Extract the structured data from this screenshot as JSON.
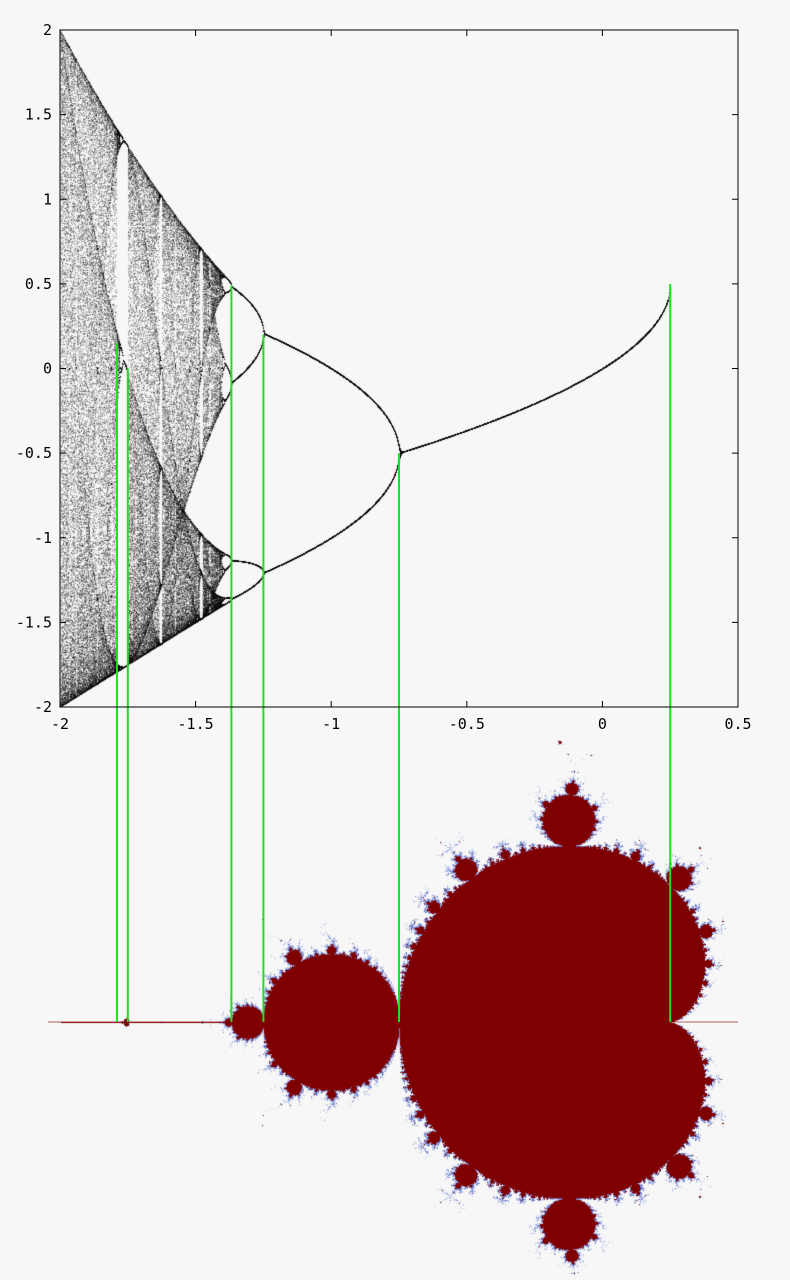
{
  "chart_data": {
    "type": "scatter",
    "title": "",
    "xlabel": "",
    "ylabel": "",
    "xlim": [
      -2,
      0.5
    ],
    "ylim": [
      -2,
      2
    ],
    "grid": false,
    "legend": "none",
    "x_ticks": [
      "-2",
      "-1.5",
      "-1",
      "-0.5",
      "0",
      "0.5"
    ],
    "y_ticks": [
      "2",
      "1.5",
      "1",
      "0.5",
      "0",
      "-0.5",
      "-1",
      "-1.5",
      "-2"
    ],
    "bifurcation_map": "x -> x^2 + c",
    "bifurcation_points": [
      {
        "c": 0.25,
        "x": 0.5
      },
      {
        "c": -0.75,
        "x": -0.5
      },
      {
        "c": -1.25,
        "x": 0.2
      },
      {
        "c": -1.368,
        "x": 0.49
      },
      {
        "c": -1.75,
        "x": 0.0
      },
      {
        "c": -1.79,
        "x": 0.15
      }
    ],
    "mandelbrot_real_range": [
      -2,
      0.5
    ]
  },
  "colors": {
    "background": "#f7f7f7",
    "points": "#000000",
    "guide_lines": "#22dd22",
    "mandelbrot_fill": "#7f0000",
    "mandelbrot_halo": "#6b7fd0"
  }
}
